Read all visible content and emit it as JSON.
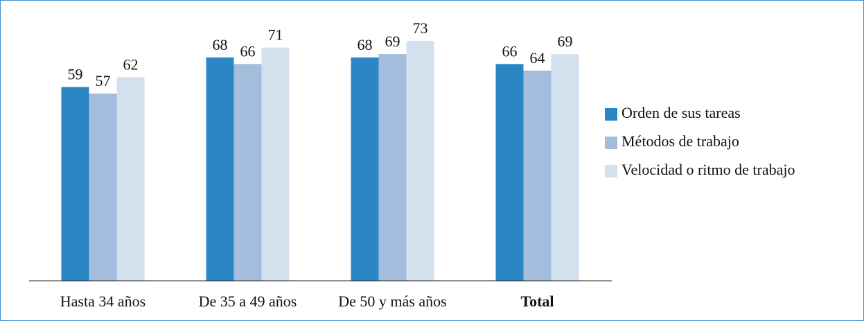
{
  "chart_data": {
    "type": "bar",
    "categories": [
      "Hasta 34 años",
      "De 35 a 49 años",
      "De 50 y más años",
      "Total"
    ],
    "series": [
      {
        "name": "Orden de sus tareas",
        "color": "#2a87c4",
        "values": [
          59,
          68,
          68,
          66
        ]
      },
      {
        "name": "Métodos de trabajo",
        "color": "#a3bddd",
        "values": [
          57,
          66,
          69,
          64
        ]
      },
      {
        "name": "Velocidad o ritmo de trabajo",
        "color": "#d3e0ee",
        "values": [
          62,
          71,
          73,
          69
        ]
      }
    ],
    "ylim": [
      0,
      80
    ],
    "legend": "right"
  }
}
